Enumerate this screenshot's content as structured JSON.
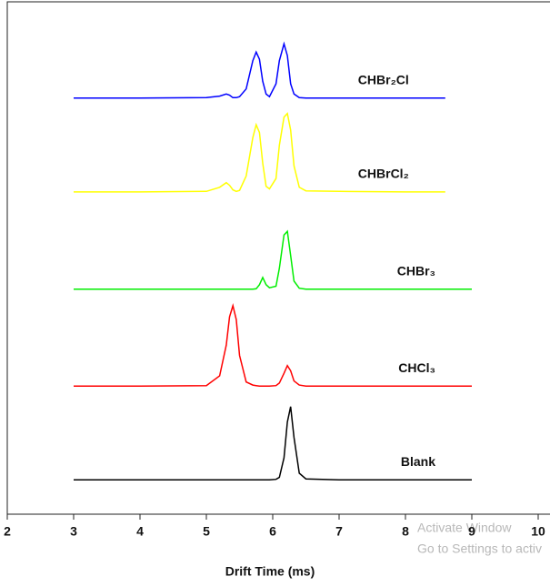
{
  "chart_data": {
    "type": "line",
    "x_label": "Drift Time (ms)",
    "x": [
      3.0,
      4.0,
      5.0,
      5.2,
      5.3,
      5.35,
      5.4,
      5.45,
      5.5,
      5.6,
      5.7,
      5.75,
      5.8,
      5.85,
      5.9,
      5.95,
      6.05,
      6.1,
      6.17,
      6.22,
      6.27,
      6.32,
      6.4,
      6.5,
      7.0,
      8.0,
      8.6,
      9.0
    ],
    "series": [
      {
        "name": "CHBr₂Cl",
        "color": "#0000ff",
        "values": [
          81.2,
          81.2,
          81.3,
          81.6,
          82.0,
          81.8,
          81.3,
          81.3,
          81.5,
          83,
          88.5,
          90.2,
          88.8,
          84.5,
          82,
          81.5,
          84,
          88.5,
          91.8,
          89.5,
          84,
          82,
          81.3,
          81.2,
          81.2,
          81.2,
          81.2,
          null
        ]
      },
      {
        "name": "CHBrCl₂",
        "color": "#ffff00",
        "values": [
          62.9,
          62.9,
          63.0,
          63.8,
          64.7,
          64.2,
          63.3,
          63.0,
          63.2,
          66,
          73.5,
          76.0,
          74.5,
          68.5,
          64,
          63.5,
          65.5,
          72,
          77.5,
          78.2,
          75,
          68,
          63.8,
          63.1,
          63.0,
          62.9,
          62.9,
          null
        ]
      },
      {
        "name": "CHBr₃",
        "color": "#00ee00",
        "values": [
          43.9,
          43.9,
          43.9,
          43.9,
          43.9,
          43.9,
          43.9,
          43.9,
          43.9,
          43.9,
          43.9,
          44.0,
          44.8,
          46.2,
          44.8,
          44.2,
          44.5,
          48,
          54.5,
          55.2,
          50.5,
          45.5,
          44.1,
          43.9,
          43.9,
          43.9,
          43.9,
          43.9
        ]
      },
      {
        "name": "CHCl₃",
        "color": "#ff0000",
        "values": [
          25.0,
          25.0,
          25.1,
          27,
          33,
          38.5,
          40.7,
          38,
          31,
          25.8,
          25.2,
          25.1,
          25.0,
          25.0,
          25.0,
          25.0,
          25.1,
          25.6,
          27.5,
          29.0,
          28,
          26,
          25.2,
          25.0,
          25.0,
          25.0,
          25.0,
          25.0
        ]
      },
      {
        "name": "Blank",
        "color": "#000000",
        "values": [
          6.7,
          6.7,
          6.7,
          6.7,
          6.7,
          6.7,
          6.7,
          6.7,
          6.7,
          6.7,
          6.7,
          6.7,
          6.7,
          6.7,
          6.7,
          6.7,
          6.8,
          7.2,
          11,
          18,
          21.0,
          15,
          8,
          6.9,
          6.7,
          6.7,
          6.7,
          6.7
        ]
      }
    ],
    "xlim": [
      2,
      10
    ],
    "xticks": [
      2,
      3,
      4,
      5,
      6,
      7,
      8,
      9,
      10
    ],
    "ylim": [
      0,
      100
    ],
    "watermark": [
      "Activate Window",
      "Go to Settings to activ"
    ]
  }
}
